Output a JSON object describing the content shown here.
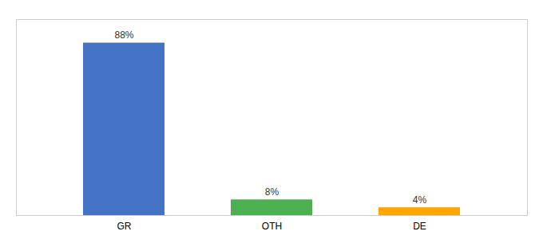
{
  "chart_data": {
    "type": "bar",
    "categories": [
      "GR",
      "OTH",
      "DE"
    ],
    "values": [
      88,
      8,
      4
    ],
    "value_labels": [
      "88%",
      "8%",
      "4%"
    ],
    "colors": [
      "#4472c4",
      "#4caf50",
      "#ffa500"
    ],
    "ylim": [
      0,
      100
    ],
    "yticks": [],
    "data_labels": true,
    "tick_labels": "x"
  }
}
